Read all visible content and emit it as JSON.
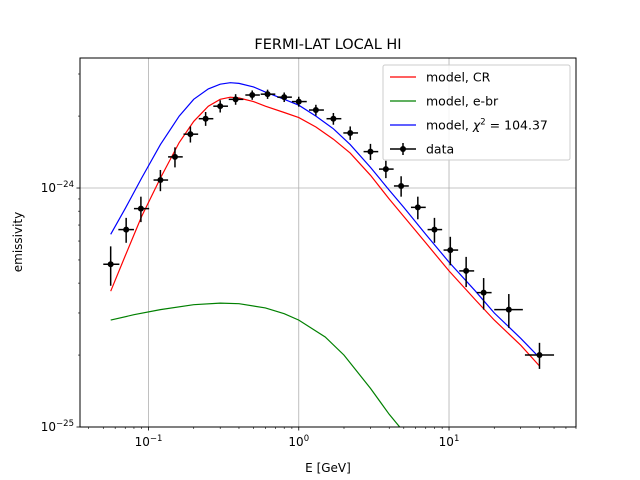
{
  "chart_data": {
    "type": "scatter",
    "title": "FERMI-LAT LOCAL HI",
    "xlabel": "E [GeV]",
    "ylabel": "emissivity",
    "xscale": "log",
    "yscale": "log",
    "xlim": [
      0.035,
      70
    ],
    "ylim": [
      1e-25,
      3.5e-24
    ],
    "grid": "on",
    "legend_position": "upper right",
    "x_ticks": [
      {
        "value": 0.1,
        "base": "10",
        "exp": "−1"
      },
      {
        "value": 1,
        "base": "10",
        "exp": "0"
      },
      {
        "value": 10,
        "base": "10",
        "exp": "1"
      }
    ],
    "y_ticks": [
      {
        "value": 1e-25,
        "base": "10",
        "exp": "−25"
      },
      {
        "value": 1e-24,
        "base": "10",
        "exp": "−24"
      }
    ],
    "legend": [
      {
        "label": "model, CR",
        "color": "#ff0000",
        "kind": "line"
      },
      {
        "label": "model, e-br",
        "color": "#008000",
        "kind": "line"
      },
      {
        "label_prefix": "model, ",
        "label_symbol": "χ",
        "label_sup": "2",
        "label_suffix": " = 104.37",
        "color": "#0000ff",
        "kind": "line"
      },
      {
        "label": "data",
        "color": "#000000",
        "kind": "errorbar"
      }
    ],
    "series": [
      {
        "name": "model, CR",
        "color": "#ff0000",
        "x": [
          0.056,
          0.07,
          0.09,
          0.12,
          0.16,
          0.2,
          0.25,
          0.3,
          0.35,
          0.4,
          0.5,
          0.6,
          0.8,
          1.0,
          1.3,
          1.7,
          2.2,
          3.0,
          4.0,
          5.0,
          7.0,
          10,
          15,
          20,
          30,
          40
        ],
        "y": [
          3.7e-25,
          5.2e-25,
          7.6e-25,
          1.1e-24,
          1.55e-24,
          1.9e-24,
          2.2e-24,
          2.35e-24,
          2.4e-24,
          2.38e-24,
          2.3e-24,
          2.2e-24,
          2.07e-24,
          1.97e-24,
          1.8e-24,
          1.6e-24,
          1.4e-24,
          1.13e-24,
          9e-25,
          7.6e-25,
          5.9e-25,
          4.5e-25,
          3.4e-25,
          2.8e-25,
          2.2e-25,
          1.8e-25
        ]
      },
      {
        "name": "model, e-br",
        "color": "#008000",
        "x": [
          0.056,
          0.08,
          0.12,
          0.2,
          0.3,
          0.4,
          0.6,
          0.8,
          1.0,
          1.5,
          2.0,
          3.0,
          4.0,
          4.7
        ],
        "y": [
          2.8e-25,
          2.95e-25,
          3.1e-25,
          3.25e-25,
          3.3e-25,
          3.28e-25,
          3.15e-25,
          2.98e-25,
          2.8e-25,
          2.38e-25,
          2e-25,
          1.45e-25,
          1.13e-25,
          1e-25
        ]
      },
      {
        "name": "model, χ² = 104.37",
        "color": "#0000ff",
        "x": [
          0.056,
          0.07,
          0.09,
          0.12,
          0.16,
          0.2,
          0.25,
          0.3,
          0.35,
          0.4,
          0.5,
          0.6,
          0.8,
          1.0,
          1.3,
          1.7,
          2.2,
          3.0,
          4.0,
          5.0,
          7.0,
          10,
          15,
          20,
          30,
          40
        ],
        "y": [
          6.4e-25,
          8.2e-25,
          1.1e-24,
          1.52e-24,
          2e-24,
          2.35e-24,
          2.6e-24,
          2.72e-24,
          2.76e-24,
          2.74e-24,
          2.65e-24,
          2.52e-24,
          2.35e-24,
          2.22e-24,
          2e-24,
          1.77e-24,
          1.52e-24,
          1.22e-24,
          9.8e-25,
          8.3e-25,
          6.4e-25,
          4.9e-25,
          3.7e-25,
          3e-25,
          2.35e-25,
          1.95e-25
        ]
      },
      {
        "name": "data",
        "color": "#000000",
        "x": [
          0.056,
          0.071,
          0.089,
          0.12,
          0.15,
          0.19,
          0.24,
          0.3,
          0.38,
          0.49,
          0.62,
          0.8,
          1.0,
          1.3,
          1.7,
          2.2,
          3.0,
          3.8,
          4.8,
          6.2,
          8.0,
          10.2,
          13.0,
          17.0,
          25.0,
          40.0
        ],
        "y": [
          4.8e-25,
          6.7e-25,
          8.2e-25,
          1.08e-24,
          1.35e-24,
          1.68e-24,
          1.95e-24,
          2.2e-24,
          2.35e-24,
          2.45e-24,
          2.47e-24,
          2.4e-24,
          2.3e-24,
          2.12e-24,
          1.95e-24,
          1.7e-24,
          1.42e-24,
          1.2e-24,
          1.02e-24,
          8.3e-25,
          6.7e-25,
          5.5e-25,
          4.5e-25,
          3.65e-25,
          3.1e-25,
          2e-25
        ],
        "xerr_low": [
          0.006,
          0.008,
          0.009,
          0.012,
          0.015,
          0.019,
          0.024,
          0.03,
          0.038,
          0.049,
          0.062,
          0.08,
          0.1,
          0.13,
          0.17,
          0.22,
          0.3,
          0.38,
          0.5,
          0.62,
          0.8,
          1.0,
          1.3,
          1.7,
          5.0,
          8.0
        ],
        "xerr_high": [
          0.008,
          0.009,
          0.012,
          0.015,
          0.019,
          0.024,
          0.03,
          0.038,
          0.048,
          0.061,
          0.078,
          0.1,
          0.13,
          0.17,
          0.22,
          0.28,
          0.38,
          0.48,
          0.6,
          0.8,
          1.0,
          1.3,
          1.7,
          2.2,
          6.0,
          10.0
        ],
        "yerr": [
          9e-26,
          8e-26,
          1e-25,
          1.1e-25,
          1.3e-25,
          1.3e-25,
          1.3e-25,
          1.3e-25,
          1.2e-25,
          1.1e-25,
          1.1e-25,
          1.1e-25,
          1.1e-25,
          1.1e-25,
          1.1e-25,
          1.1e-25,
          1.1e-25,
          1e-25,
          1e-25,
          9e-26,
          8e-26,
          7.5e-26,
          6.5e-26,
          5.5e-26,
          5e-26,
          2.5e-26
        ]
      }
    ]
  }
}
